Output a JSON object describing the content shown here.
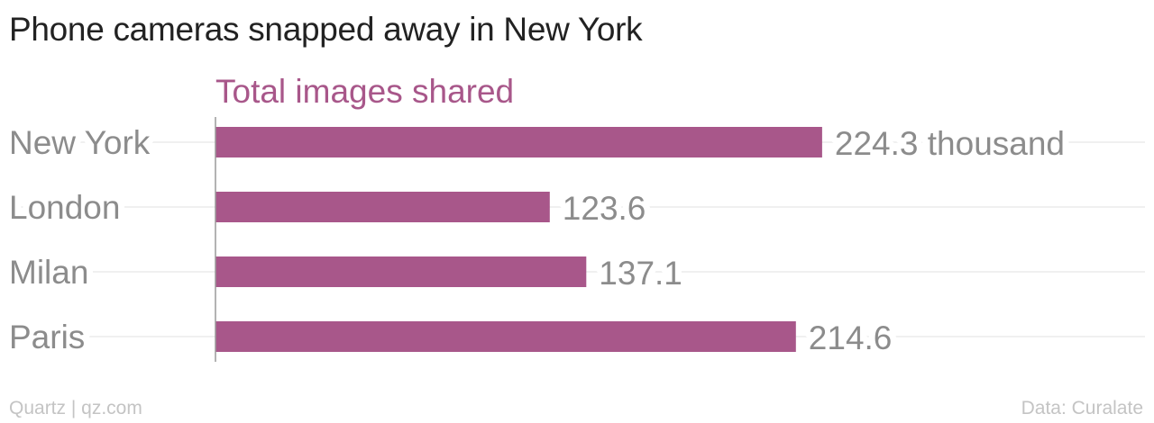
{
  "chart_data": {
    "type": "bar",
    "orientation": "horizontal",
    "title": "Phone cameras snapped away in New York",
    "series_label": "Total images shared",
    "categories": [
      "New York",
      "London",
      "Milan",
      "Paris"
    ],
    "values": [
      224.3,
      123.6,
      137.1,
      214.6
    ],
    "value_labels": [
      "224.3 thousand",
      "123.6",
      "137.1",
      "214.6"
    ],
    "unit": "thousand",
    "xlim": [
      0,
      250
    ],
    "grid": true,
    "bar_color": "#a8578a"
  },
  "footer": {
    "source_left": "Quartz | qz.com",
    "source_right": "Data: Curalate"
  },
  "colors": {
    "title": "#222222",
    "series_label": "#a8578a",
    "category_label": "#8c8c8c",
    "value_label": "#8c8c8c",
    "gridline": "#ebebeb",
    "axis": "#9a9a9a",
    "footer": "#c4c4c4"
  }
}
